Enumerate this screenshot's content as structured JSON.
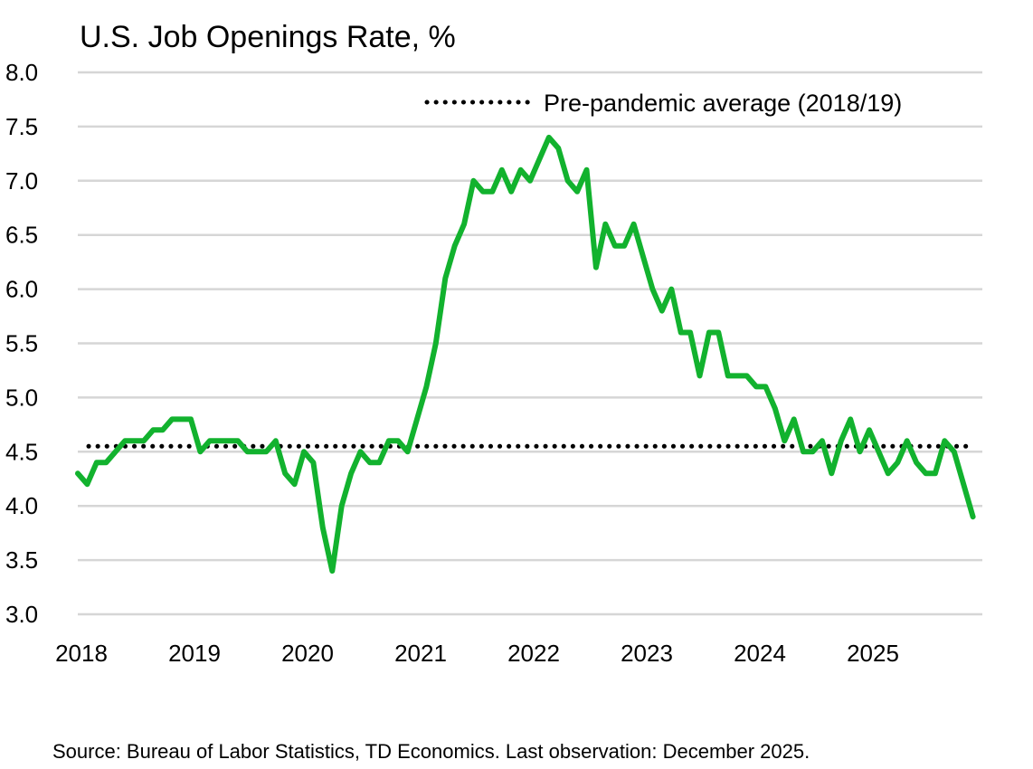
{
  "chart_data": {
    "type": "line",
    "title": "U.S. Job Openings Rate, %",
    "xlabel": "",
    "ylabel": "",
    "ylim": [
      3.0,
      8.0
    ],
    "yticks": [
      "3.0",
      "3.5",
      "4.0",
      "4.5",
      "5.0",
      "5.5",
      "6.0",
      "6.5",
      "7.0",
      "7.5",
      "8.0"
    ],
    "xlim": [
      "2018-01",
      "2026-01"
    ],
    "xticks": [
      "2018",
      "2019",
      "2020",
      "2021",
      "2022",
      "2023",
      "2024",
      "2025"
    ],
    "grid": "horizontal",
    "legend": {
      "position": "top-right",
      "entries": [
        "Pre-pandemic average (2018/19)"
      ]
    },
    "reference_line": {
      "label": "Pre-pandemic average (2018/19)",
      "value": 4.55,
      "style": "dotted",
      "color": "#000000"
    },
    "series": [
      {
        "color": "#12b22e",
        "x_start": "2018-01",
        "frequency": "monthly",
        "values": [
          4.3,
          4.2,
          4.4,
          4.4,
          4.5,
          4.6,
          4.6,
          4.6,
          4.7,
          4.7,
          4.8,
          4.8,
          4.8,
          4.5,
          4.6,
          4.6,
          4.6,
          4.6,
          4.5,
          4.5,
          4.5,
          4.6,
          4.3,
          4.2,
          4.5,
          4.4,
          3.8,
          3.4,
          4.0,
          4.3,
          4.5,
          4.4,
          4.4,
          4.6,
          4.6,
          4.5,
          4.8,
          5.1,
          5.5,
          6.1,
          6.4,
          6.6,
          7.0,
          6.9,
          6.9,
          7.1,
          6.9,
          7.1,
          7.0,
          7.2,
          7.4,
          7.3,
          7.0,
          6.9,
          7.1,
          6.2,
          6.6,
          6.4,
          6.4,
          6.6,
          6.3,
          6.0,
          5.8,
          6.0,
          5.6,
          5.6,
          5.2,
          5.6,
          5.6,
          5.2,
          5.2,
          5.2,
          5.1,
          5.1,
          4.9,
          4.6,
          4.8,
          4.5,
          4.5,
          4.6,
          4.3,
          4.6,
          4.8,
          4.5,
          4.7,
          4.5,
          4.3,
          4.4,
          4.6,
          4.4,
          4.3,
          4.3,
          4.6,
          4.5,
          4.2,
          3.9
        ]
      }
    ]
  },
  "source_note": "Source: Bureau of Labor Statistics, TD Economics. Last observation: December 2025."
}
